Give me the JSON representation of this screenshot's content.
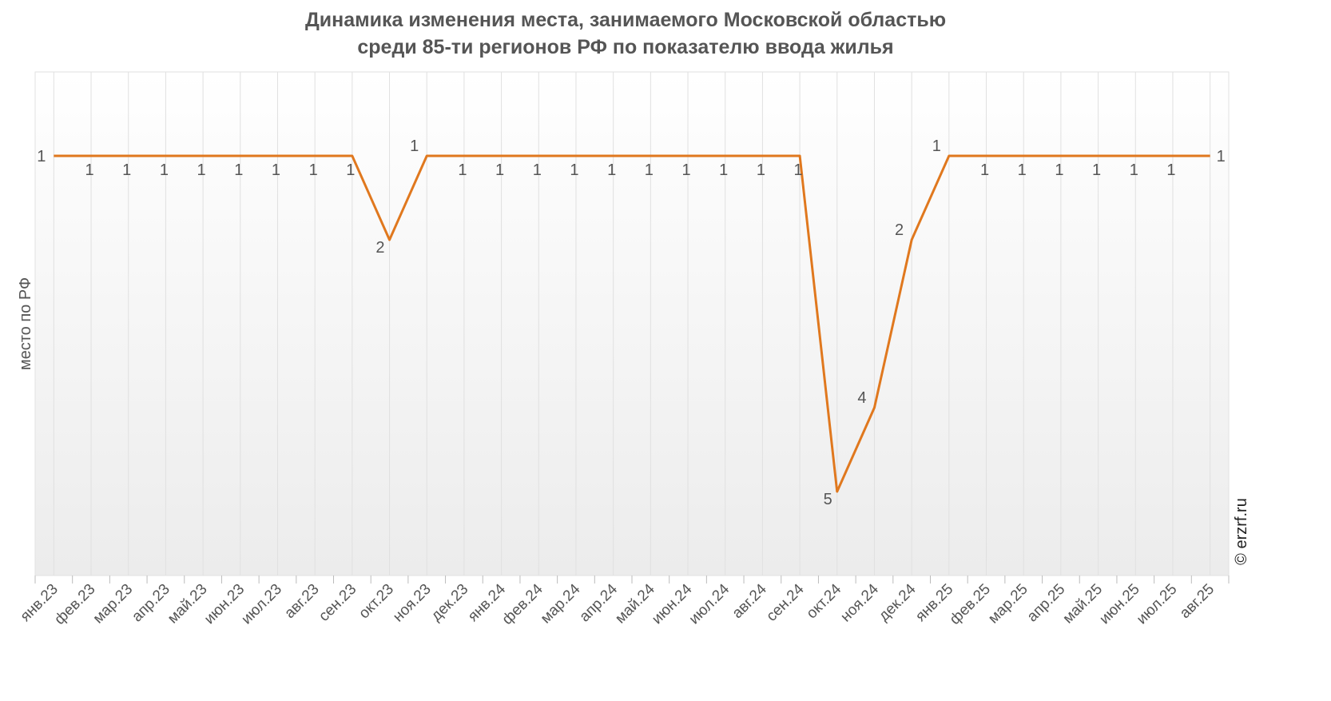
{
  "chart_data": {
    "type": "line",
    "title": [
      "Динамика изменения места, занимаемого Московской областью",
      "среди 85-ти регионов РФ по показателю ввода жилья"
    ],
    "y_label": "место по РФ",
    "watermark": "© erzrf.ru",
    "categories": [
      "янв.23",
      "фев.23",
      "мар.23",
      "апр.23",
      "май.23",
      "июн.23",
      "июл.23",
      "авг.23",
      "сен.23",
      "окт.23",
      "ноя.23",
      "дек.23",
      "янв.24",
      "фев.24",
      "мар.24",
      "апр.24",
      "май.24",
      "июн.24",
      "июл.24",
      "авг.24",
      "сен.24",
      "окт.24",
      "ноя.24",
      "дек.24",
      "янв.25",
      "фев.25",
      "мар.25",
      "апр.25",
      "май.25",
      "июн.25",
      "июл.25",
      "авг.25"
    ],
    "series": [
      {
        "color": "#e0781e",
        "values": [
          1,
          1,
          1,
          1,
          1,
          1,
          1,
          1,
          1,
          2,
          1,
          1,
          1,
          1,
          1,
          1,
          1,
          1,
          1,
          1,
          1,
          5,
          4,
          2,
          1,
          1,
          1,
          1,
          1,
          1,
          1,
          1
        ]
      }
    ],
    "ylim": [
      0,
      6
    ],
    "y_inverted": true,
    "grid": true
  }
}
